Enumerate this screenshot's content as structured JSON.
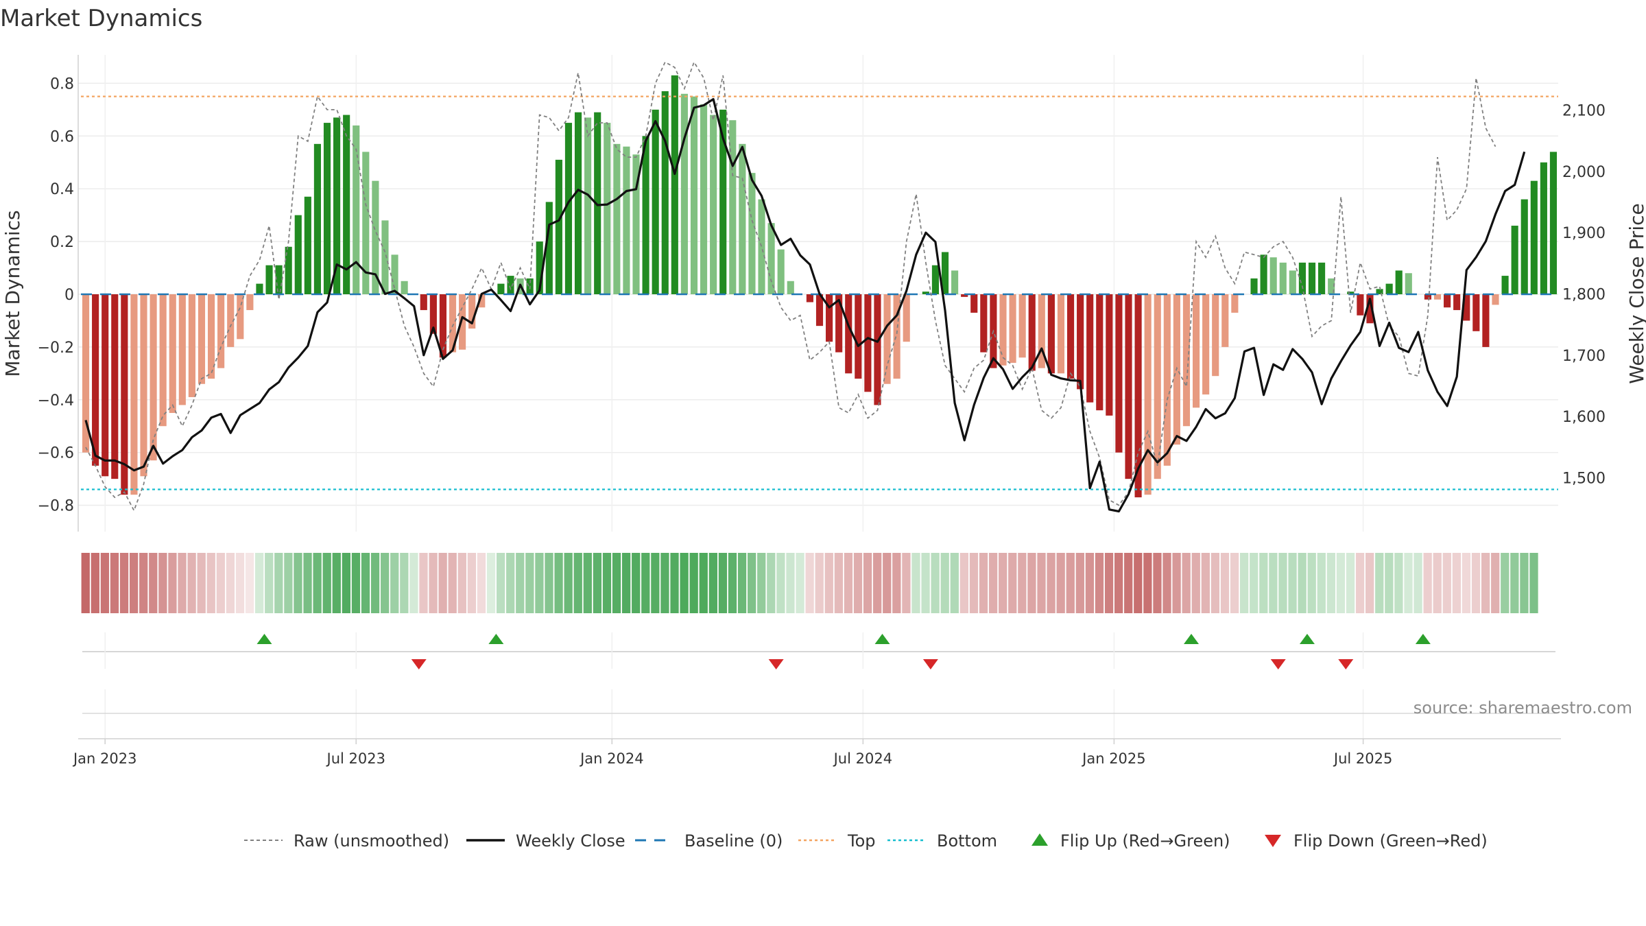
{
  "chart_data": {
    "type": "bar",
    "title": "Market Dynamics",
    "ylabel_left": "Market Dynamics",
    "ylabel_right": "Weekly Close Price",
    "ylim_left": [
      -0.9,
      0.9
    ],
    "ylim_right": [
      1440,
      2150
    ],
    "yticks_left": [
      {
        "v": 0.8,
        "label": "0.8"
      },
      {
        "v": 0.6,
        "label": "0.6"
      },
      {
        "v": 0.4,
        "label": "0.4"
      },
      {
        "v": 0.2,
        "label": "0.2"
      },
      {
        "v": 0,
        "label": "0"
      },
      {
        "v": -0.2,
        "label": "−0.2"
      },
      {
        "v": -0.4,
        "label": "−0.4"
      },
      {
        "v": -0.6,
        "label": "−0.6"
      },
      {
        "v": -0.8,
        "label": "−0.8"
      }
    ],
    "yticks_right": [
      {
        "v": 2100,
        "label": "2,100"
      },
      {
        "v": 2000,
        "label": "2,000"
      },
      {
        "v": 1900,
        "label": "1,900"
      },
      {
        "v": 1800,
        "label": "1,800"
      },
      {
        "v": 1700,
        "label": "1,700"
      },
      {
        "v": 1600,
        "label": "1,600"
      },
      {
        "v": 1500,
        "label": "1,500"
      }
    ],
    "xticks": [
      {
        "week": 2,
        "label": "Jan 2023"
      },
      {
        "week": 28,
        "label": "Jul 2023"
      },
      {
        "week": 54.5,
        "label": "Jan 2024"
      },
      {
        "week": 80.5,
        "label": "Jul 2024"
      },
      {
        "week": 106.5,
        "label": "Jan 2025"
      },
      {
        "week": 132.3,
        "label": "Jul 2025"
      }
    ],
    "thresholds": {
      "top": 0.75,
      "bottom": -0.74,
      "baseline": 0
    },
    "dynamics": [
      -0.6,
      -0.65,
      -0.69,
      -0.7,
      -0.76,
      -0.76,
      -0.69,
      -0.63,
      -0.5,
      -0.45,
      -0.42,
      -0.39,
      -0.34,
      -0.32,
      -0.28,
      -0.2,
      -0.17,
      -0.06,
      0.04,
      0.11,
      0.11,
      0.18,
      0.3,
      0.37,
      0.57,
      0.65,
      0.67,
      0.68,
      0.64,
      0.54,
      0.43,
      0.28,
      0.15,
      0.05,
      0,
      -0.06,
      -0.15,
      -0.24,
      -0.22,
      -0.21,
      -0.13,
      -0.05,
      0,
      0.04,
      0.07,
      0.06,
      0.06,
      0.2,
      0.35,
      0.51,
      0.65,
      0.69,
      0.67,
      0.69,
      0.65,
      0.57,
      0.56,
      0.53,
      0.6,
      0.7,
      0.77,
      0.83,
      0.76,
      0.75,
      0.72,
      0.68,
      0.7,
      0.66,
      0.57,
      0.46,
      0.36,
      0.27,
      0.17,
      0.05,
      0,
      -0.03,
      -0.12,
      -0.18,
      -0.22,
      -0.3,
      -0.32,
      -0.37,
      -0.42,
      -0.34,
      -0.32,
      -0.18,
      0,
      0.01,
      0.11,
      0.16,
      0.09,
      -0.01,
      -0.07,
      -0.22,
      -0.28,
      -0.27,
      -0.26,
      -0.24,
      -0.29,
      -0.28,
      -0.3,
      -0.3,
      -0.32,
      -0.36,
      -0.41,
      -0.44,
      -0.46,
      -0.6,
      -0.7,
      -0.77,
      -0.76,
      -0.7,
      -0.65,
      -0.57,
      -0.5,
      -0.43,
      -0.38,
      -0.31,
      -0.2,
      -0.07,
      0,
      0.06,
      0.15,
      0.14,
      0.12,
      0.09,
      0.12,
      0.12,
      0.12,
      0.06,
      0,
      0.01,
      -0.08,
      -0.11,
      0.02,
      0.04,
      0.09,
      0.08,
      0,
      -0.02,
      -0.02,
      -0.05,
      -0.06,
      -0.1,
      -0.14,
      -0.2,
      -0.04,
      0.07,
      0.26,
      0.36,
      0.43,
      0.5,
      0.54
    ],
    "raw": [
      -0.58,
      -0.65,
      -0.73,
      -0.77,
      -0.75,
      -0.82,
      -0.72,
      -0.55,
      -0.46,
      -0.42,
      -0.5,
      -0.42,
      -0.32,
      -0.3,
      -0.2,
      -0.12,
      -0.05,
      0.07,
      0.13,
      0.26,
      -0.02,
      0.2,
      0.6,
      0.58,
      0.75,
      0.7,
      0.7,
      0.6,
      0.55,
      0.34,
      0.24,
      0.16,
      0.02,
      -0.12,
      -0.2,
      -0.3,
      -0.35,
      -0.21,
      -0.12,
      -0.05,
      0.02,
      0.1,
      0.02,
      0.12,
      0.02,
      0.1,
      0.02,
      0.68,
      0.67,
      0.62,
      0.67,
      0.84,
      0.6,
      0.65,
      0.65,
      0.55,
      0.52,
      0.52,
      0.6,
      0.8,
      0.88,
      0.86,
      0.78,
      0.88,
      0.82,
      0.66,
      0.83,
      0.45,
      0.44,
      0.28,
      0.18,
      0.05,
      -0.05,
      -0.1,
      -0.08,
      -0.25,
      -0.22,
      -0.18,
      -0.43,
      -0.45,
      -0.38,
      -0.47,
      -0.44,
      -0.27,
      -0.15,
      0.2,
      0.38,
      0.12,
      -0.1,
      -0.27,
      -0.32,
      -0.37,
      -0.28,
      -0.25,
      -0.14,
      -0.24,
      -0.27,
      -0.36,
      -0.28,
      -0.44,
      -0.47,
      -0.43,
      -0.3,
      -0.35,
      -0.52,
      -0.62,
      -0.78,
      -0.8,
      -0.75,
      -0.6,
      -0.52,
      -0.65,
      -0.4,
      -0.28,
      -0.35,
      0.2,
      0.14,
      0.22,
      0.1,
      0.04,
      0.16,
      0.15,
      0.14,
      0.18,
      0.2,
      0.14,
      0.03,
      -0.16,
      -0.12,
      -0.1,
      0.37,
      -0.07,
      0.12,
      0.02,
      0.03,
      -0.12,
      -0.16,
      -0.3,
      -0.31,
      -0.08,
      0.52,
      0.28,
      0.32,
      0.4,
      0.82,
      0.63,
      0.56
    ],
    "weekly_close": [
      1594,
      1536,
      1528,
      1528,
      1522,
      1512,
      1518,
      1552,
      1523,
      1535,
      1545,
      1566,
      1577,
      1598,
      1604,
      1573,
      1602,
      1612,
      1622,
      1644,
      1656,
      1680,
      1696,
      1715,
      1770,
      1786,
      1848,
      1840,
      1852,
      1835,
      1832,
      1800,
      1805,
      1793,
      1780,
      1700,
      1745,
      1694,
      1708,
      1762,
      1752,
      1800,
      1807,
      1790,
      1772,
      1815,
      1783,
      1806,
      1913,
      1920,
      1950,
      1970,
      1962,
      1945,
      1946,
      1955,
      1968,
      1971,
      2050,
      2082,
      2050,
      1996,
      2054,
      2104,
      2108,
      2118,
      2054,
      2009,
      2040,
      1986,
      1960,
      1912,
      1880,
      1890,
      1863,
      1848,
      1800,
      1778,
      1790,
      1748,
      1715,
      1728,
      1722,
      1748,
      1765,
      1805,
      1864,
      1900,
      1885,
      1773,
      1622,
      1561,
      1619,
      1663,
      1695,
      1677,
      1645,
      1664,
      1680,
      1711,
      1668,
      1662,
      1659,
      1658,
      1483,
      1526,
      1448,
      1445,
      1473,
      1515,
      1545,
      1525,
      1540,
      1568,
      1560,
      1583,
      1612,
      1597,
      1605,
      1630,
      1706,
      1712,
      1635,
      1685,
      1676,
      1710,
      1694,
      1672,
      1620,
      1662,
      1690,
      1716,
      1738,
      1792,
      1715,
      1753,
      1712,
      1705,
      1738,
      1675,
      1640,
      1617,
      1665,
      1839,
      1860,
      1886,
      1930,
      1968,
      1978,
      2032
    ],
    "heat": [
      0.92,
      0.88,
      0.85,
      0.82,
      0.8,
      0.78,
      0.75,
      0.72,
      0.66,
      0.6,
      0.52,
      0.47,
      0.42,
      0.36,
      0.3,
      0.25,
      0.2,
      0.15,
      0.22,
      0.35,
      0.45,
      0.5,
      0.62,
      0.68,
      0.75,
      0.8,
      0.85,
      0.88,
      0.85,
      0.78,
      0.72,
      0.62,
      0.5,
      0.42,
      0.22,
      0.35,
      0.42,
      0.48,
      0.46,
      0.38,
      0.3,
      0.22,
      0.18,
      0.35,
      0.42,
      0.48,
      0.52,
      0.56,
      0.62,
      0.7,
      0.75,
      0.78,
      0.8,
      0.82,
      0.85,
      0.86,
      0.88,
      0.88,
      0.86,
      0.86,
      0.85,
      0.88,
      0.9,
      0.9,
      0.9,
      0.88,
      0.86,
      0.82,
      0.75,
      0.65,
      0.55,
      0.42,
      0.32,
      0.26,
      0.22,
      0.25,
      0.32,
      0.38,
      0.42,
      0.46,
      0.5,
      0.55,
      0.6,
      0.62,
      0.58,
      0.45,
      0.28,
      0.3,
      0.36,
      0.38,
      0.4,
      0.35,
      0.42,
      0.48,
      0.5,
      0.5,
      0.52,
      0.52,
      0.55,
      0.55,
      0.56,
      0.58,
      0.6,
      0.62,
      0.66,
      0.72,
      0.78,
      0.82,
      0.85,
      0.88,
      0.86,
      0.8,
      0.72,
      0.62,
      0.55,
      0.5,
      0.46,
      0.4,
      0.35,
      0.3,
      0.28,
      0.3,
      0.34,
      0.35,
      0.36,
      0.36,
      0.38,
      0.34,
      0.3,
      0.26,
      0.22,
      0.22,
      0.3,
      0.34,
      0.36,
      0.36,
      0.32,
      0.22,
      0.24,
      0.3,
      0.32,
      0.3,
      0.28,
      0.24,
      0.3,
      0.42,
      0.48,
      0.52,
      0.56,
      0.6,
      0.66
    ],
    "flip_up": [
      18.5,
      42.5,
      82.5,
      114.5,
      126.5,
      138.5
    ],
    "flip_down": [
      34.5,
      71.5,
      87.5,
      123.5,
      130.5
    ],
    "source": "source: sharemaestro.com",
    "legend": [
      {
        "key": "raw",
        "label": "Raw (unsmoothed)"
      },
      {
        "key": "close",
        "label": "Weekly Close"
      },
      {
        "key": "baseline",
        "label": "Baseline (0)"
      },
      {
        "key": "top",
        "label": "Top"
      },
      {
        "key": "bottom",
        "label": "Bottom"
      },
      {
        "key": "flipup",
        "label": "Flip Up (Red→Green)"
      },
      {
        "key": "flipdown",
        "label": "Flip Down (Green→Red)"
      }
    ],
    "colors": {
      "green_strong": "#228b22",
      "green_light": "#80c080",
      "red_strong": "#b22222",
      "red_light": "#e79a80",
      "raw_line": "#808080",
      "close_line": "#111111",
      "baseline": "#1f77b4",
      "top": "#f4a460",
      "bottom": "#17becf",
      "flip_up": "#2ca02c",
      "flip_down": "#d62728",
      "heat_green": "#3aa04a",
      "heat_red": "#bf5b5b"
    }
  }
}
